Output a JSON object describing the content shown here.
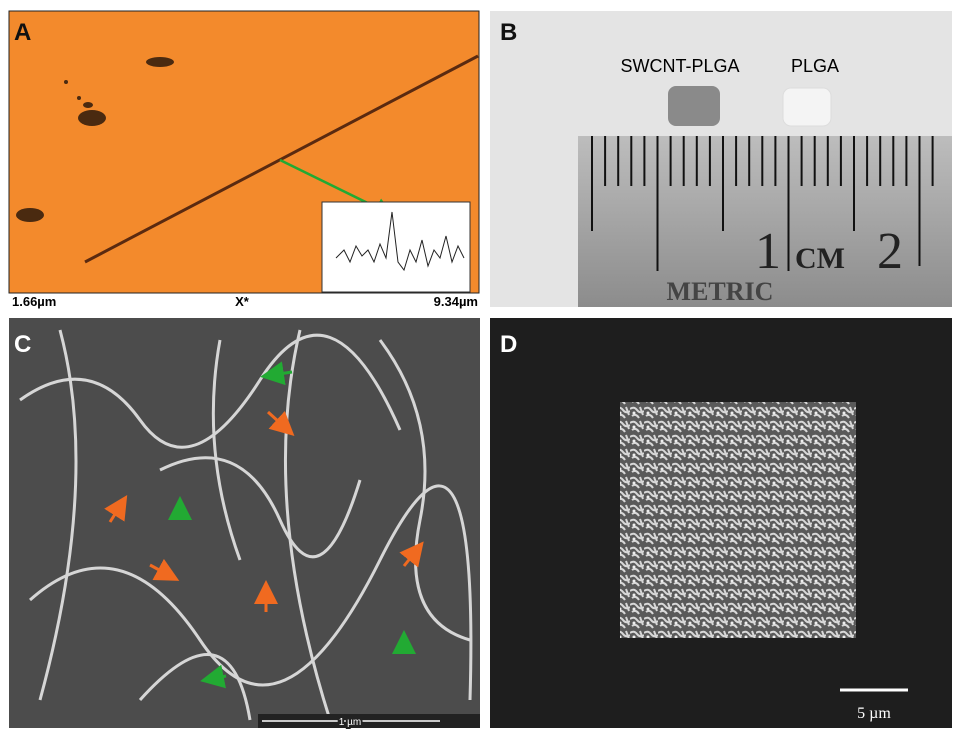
{
  "panels": [
    {
      "label": "A",
      "axis_left": "1.66µm",
      "axis_center": "X*",
      "axis_right": "9.34µm"
    },
    {
      "label": "B",
      "samples": [
        "SWCNT-PLGA",
        "PLGA"
      ],
      "ruler": [
        "1",
        "CM",
        "2"
      ],
      "ruler_brand": "METRIC"
    },
    {
      "label": "C",
      "scale_bar": "1 µm"
    },
    {
      "label": "D",
      "scale_bar": "5 µm"
    }
  ]
}
